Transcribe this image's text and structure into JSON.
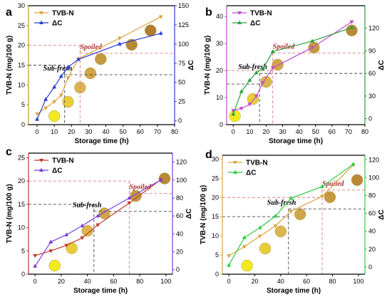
{
  "chart_data": [
    {
      "panel": "a",
      "type": "line",
      "xlabel": "Storage time (h)",
      "ylabel": "TVB-N (mg/100 g)",
      "y2label": "ΔC",
      "xlim": [
        -5,
        80
      ],
      "ylim": [
        0,
        30
      ],
      "y2lim": [
        -5,
        150
      ],
      "xticks": [
        0,
        10,
        20,
        30,
        40,
        50,
        60,
        70,
        80
      ],
      "yticks": [
        0,
        5,
        10,
        15,
        20,
        25,
        30
      ],
      "y2ticks": [
        0,
        25,
        50,
        75,
        100,
        125,
        150
      ],
      "left_color": "#c8922a",
      "right_color": "#2b3fd8",
      "series": [
        {
          "name": "TVB-N",
          "axis": "left",
          "color": "#d9a441",
          "x": [
            0,
            5,
            10,
            14,
            18,
            24,
            48,
            72
          ],
          "y": [
            2.7,
            4.2,
            5.8,
            7.4,
            11.8,
            16.6,
            21.8,
            27.2
          ]
        },
        {
          "name": "ΔC",
          "axis": "right",
          "color": "#2b3fd8",
          "x": [
            0,
            5,
            10,
            14,
            18,
            24,
            48,
            72
          ],
          "y": [
            2,
            28,
            44,
            58,
            70,
            80,
            100,
            114
          ]
        }
      ],
      "thresholds": [
        {
          "label": "Sub-fresh",
          "tvb": 15,
          "time": 16,
          "dc": 60
        },
        {
          "label": "Spoiled",
          "tvb": 20,
          "time": 25,
          "dc": 88
        }
      ],
      "photos_x": [
        10,
        18,
        25,
        31,
        37,
        55,
        66
      ],
      "legend": "top-left"
    },
    {
      "panel": "b",
      "type": "line",
      "xlabel": "Storage time (h)",
      "ylabel": "TVB-N (mg/100 g)",
      "y2label": "ΔC",
      "xlim": [
        -4,
        80
      ],
      "ylim": [
        0,
        44
      ],
      "y2lim": [
        -8,
        150
      ],
      "xticks": [
        0,
        10,
        20,
        30,
        40,
        50,
        60,
        70,
        80
      ],
      "yticks": [
        0,
        10,
        20,
        30,
        40
      ],
      "y2ticks": [
        0,
        30,
        60,
        90,
        120
      ],
      "left_color": "#c04bd0",
      "right_color": "#2e9e3e",
      "series": [
        {
          "name": "TVB-N",
          "axis": "left",
          "color": "#c04bd0",
          "x": [
            0,
            5,
            10,
            14,
            18,
            24,
            48,
            72
          ],
          "y": [
            5.2,
            6.0,
            7.5,
            10.5,
            15.5,
            21.0,
            28.5,
            38.0
          ]
        },
        {
          "name": "ΔC",
          "axis": "right",
          "color": "#2e9e3e",
          "x": [
            0,
            5,
            10,
            14,
            18,
            24,
            48,
            72
          ],
          "y": [
            6,
            36,
            51,
            61,
            66,
            89,
            103,
            121
          ]
        }
      ],
      "thresholds": [
        {
          "label": "Sub-fresh",
          "tvb": 15,
          "time": 16,
          "dc": 60
        },
        {
          "label": "Spoiled",
          "tvb": 20,
          "time": 24,
          "dc": 87
        }
      ],
      "photos_x": [
        1,
        12,
        20,
        27,
        49,
        72
      ],
      "legend": "top-left"
    },
    {
      "panel": "c",
      "type": "line",
      "xlabel": "Storage time (h)",
      "ylabel": "TVB-N (mg/100 g)",
      "y2label": "ΔC",
      "xlim": [
        -5,
        105
      ],
      "ylim": [
        0,
        26
      ],
      "y2lim": [
        -5,
        130
      ],
      "xticks": [
        0,
        20,
        40,
        60,
        80,
        100
      ],
      "yticks": [
        0,
        5,
        10,
        15,
        20,
        25
      ],
      "y2ticks": [
        0,
        20,
        40,
        60,
        80,
        100,
        120
      ],
      "left_color": "#c0392b",
      "right_color": "#7b3fd8",
      "series": [
        {
          "name": "TVB-N",
          "axis": "left",
          "color": "#c0392b",
          "x": [
            0,
            12,
            24,
            36,
            48,
            72,
            96
          ],
          "y": [
            4.0,
            5.0,
            6.2,
            7.8,
            10.6,
            15.3,
            20.3
          ]
        },
        {
          "name": "ΔC",
          "axis": "right",
          "color": "#7b3fd8",
          "x": [
            0,
            12,
            24,
            36,
            48,
            72,
            96
          ],
          "y": [
            4,
            31,
            39,
            49,
            60,
            80,
            100
          ]
        }
      ],
      "thresholds": [
        {
          "label": "Sub-fresh",
          "tvb": 15,
          "time": 45,
          "dc": 65
        },
        {
          "label": "Spoiled",
          "tvb": 20,
          "time": 72,
          "dc": 85
        }
      ],
      "photos_x": [
        15,
        28,
        40,
        53,
        77,
        99
      ],
      "legend": "top-left"
    },
    {
      "panel": "d",
      "type": "line",
      "xlabel": "Storage time (h)",
      "ylabel": "TVB-N (mg/100 g)",
      "y2label": "ΔC",
      "xlim": [
        -5,
        105
      ],
      "ylim": [
        0,
        31
      ],
      "y2lim": [
        -8,
        125
      ],
      "xticks": [
        0,
        20,
        40,
        60,
        80,
        100
      ],
      "yticks": [
        0,
        5,
        10,
        15,
        20,
        25,
        30
      ],
      "y2ticks": [
        0,
        20,
        40,
        60,
        80,
        100,
        120
      ],
      "left_color": "#d9a441",
      "right_color": "#2ecc40",
      "series": [
        {
          "name": "TVB-N",
          "axis": "left",
          "color": "#d9a441",
          "x": [
            0,
            12,
            24,
            36,
            48,
            72,
            96
          ],
          "y": [
            4.8,
            7.2,
            9.9,
            12.6,
            16.4,
            20.3,
            28.5
          ]
        },
        {
          "name": "ΔC",
          "axis": "right",
          "color": "#2ecc40",
          "x": [
            0,
            12,
            24,
            36,
            48,
            72,
            96
          ],
          "y": [
            2,
            33,
            44,
            57,
            77,
            90,
            115
          ]
        }
      ],
      "thresholds": [
        {
          "label": "Sub-fresh",
          "tvb": 15,
          "time": 46,
          "dc": 65
        },
        {
          "label": "Spoiled",
          "tvb": 20,
          "time": 72,
          "dc": 86
        }
      ],
      "photos_x": [
        14,
        28,
        40,
        55,
        78,
        99
      ],
      "legend": "top-left"
    }
  ]
}
